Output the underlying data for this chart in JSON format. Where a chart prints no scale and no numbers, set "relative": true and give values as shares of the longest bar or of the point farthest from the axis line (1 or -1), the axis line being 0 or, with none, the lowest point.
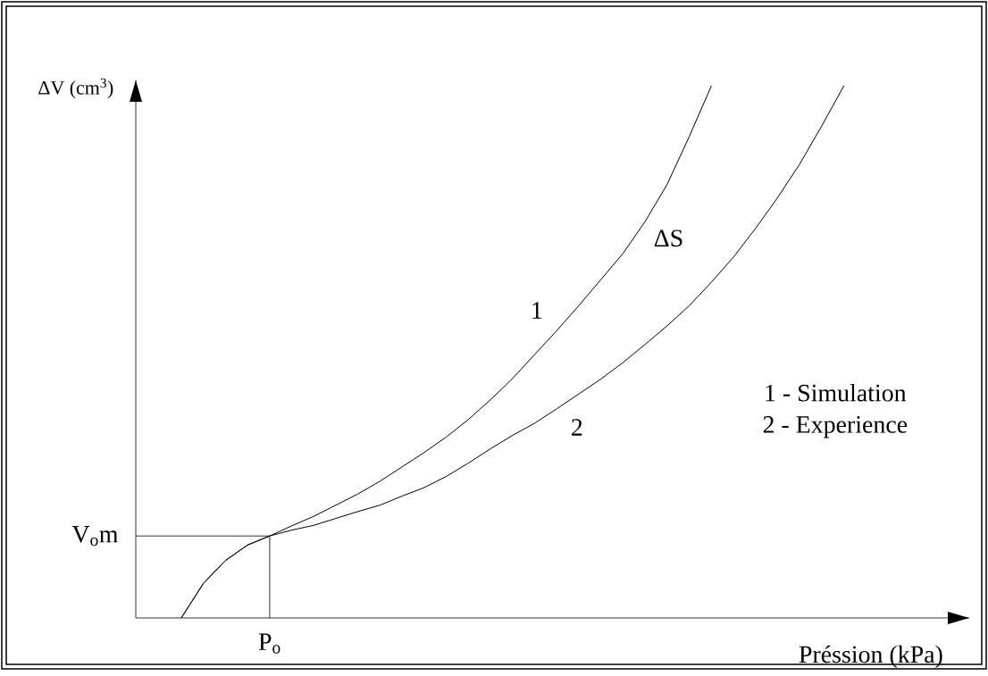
{
  "chart_data": {
    "type": "line",
    "relative": true,
    "xlabel": "Préssion (kPa)",
    "ylabel": "ΔV (cm$^{3}$)",
    "categories": [
      null,
      null,
      null,
      null,
      null,
      null,
      null,
      null,
      null,
      null,
      null,
      null,
      null,
      null,
      null,
      null,
      null,
      null,
      null,
      null,
      null,
      null,
      null,
      null,
      null,
      null,
      null,
      null,
      null,
      null,
      null
    ],
    "series": [
      {
        "name": "1",
        "color": "#000000",
        "values": [
          0,
          0.065,
          0.108,
          0.137,
          0.154,
          0.173,
          0.191,
          0.212,
          0.233,
          0.257,
          0.284,
          0.311,
          0.34,
          0.373,
          0.41,
          0.45,
          0.495,
          0.54,
          0.587,
          0.636,
          0.685,
          0.745,
          0.815,
          0.905,
          1.0,
          null,
          null,
          null,
          null,
          null,
          null
        ]
      },
      {
        "name": "2",
        "color": "#000000",
        "values": [
          0,
          0.065,
          0.108,
          0.137,
          0.154,
          0.165,
          0.174,
          0.187,
          0.2,
          0.212,
          0.229,
          0.245,
          0.266,
          0.291,
          0.318,
          0.343,
          0.366,
          0.393,
          0.421,
          0.449,
          0.48,
          0.514,
          0.549,
          0.587,
          0.631,
          0.678,
          0.732,
          0.79,
          0.853,
          0.925,
          1.0
        ]
      }
    ],
    "annotations": [
      "P$_{o}$",
      "V$_{o}$m",
      "ΔS",
      "1 - Simulation",
      "2 - Experience"
    ]
  }
}
